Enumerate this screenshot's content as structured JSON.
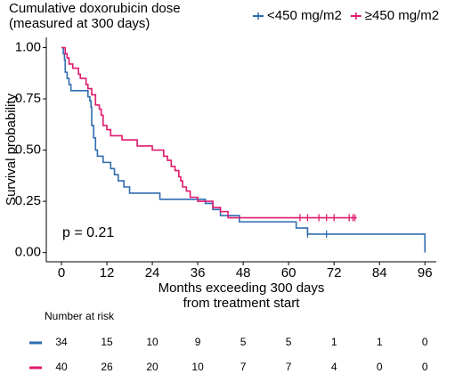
{
  "chart_data": {
    "type": "step",
    "legend_title": [
      "Cumulative doxorubicin dose",
      "(measured at 300 days)"
    ],
    "xlabel": [
      "Months exceeding 300 days",
      "from treatment start"
    ],
    "ylabel": "Survival probability",
    "annotation": "p = 0.21",
    "xlim": [
      -4,
      99
    ],
    "ylim": [
      -0.045,
      1.05
    ],
    "xticks": [
      0,
      12,
      24,
      36,
      48,
      60,
      72,
      84,
      96
    ],
    "yticks": [
      {
        "value": 0,
        "label": "0.00"
      },
      {
        "value": 0.25,
        "label": "0.25"
      },
      {
        "value": 0.5,
        "label": "0.50"
      },
      {
        "value": 0.75,
        "label": "0.75"
      },
      {
        "value": 1,
        "label": "1.00"
      }
    ],
    "series": [
      {
        "name": "<450 mg/m2",
        "color": "#2e6cb0",
        "x": [
          0,
          0.5,
          0.8,
          1,
          1.5,
          2,
          2.5,
          7,
          7.5,
          7.8,
          8,
          8.5,
          9,
          9.5,
          11,
          13,
          14,
          15,
          16.5,
          18,
          20,
          26,
          38,
          40,
          42,
          47,
          62,
          65,
          96,
          96
        ],
        "values": [
          1,
          0.97,
          0.94,
          0.88,
          0.85,
          0.82,
          0.79,
          0.76,
          0.74,
          0.71,
          0.62,
          0.56,
          0.5,
          0.47,
          0.44,
          0.41,
          0.38,
          0.35,
          0.32,
          0.29,
          0.29,
          0.26,
          0.24,
          0.21,
          0.18,
          0.15,
          0.12,
          0.09,
          0.09,
          0
        ],
        "censored": {
          "x": [
            65,
            70
          ],
          "y": [
            0.09,
            0.09
          ]
        }
      },
      {
        "name": "≥450 mg/m2",
        "color": "#e0196e",
        "x": [
          0,
          1,
          1.5,
          2,
          3,
          4.5,
          5,
          6.5,
          7,
          8,
          9,
          10,
          10.5,
          11,
          12,
          13,
          16,
          20,
          24,
          27,
          28,
          29,
          30,
          31,
          31.5,
          32,
          33,
          34,
          36,
          40,
          42,
          44,
          78
        ],
        "values": [
          1,
          0.97,
          0.95,
          0.92,
          0.9,
          0.87,
          0.85,
          0.82,
          0.8,
          0.77,
          0.72,
          0.7,
          0.67,
          0.62,
          0.6,
          0.57,
          0.55,
          0.52,
          0.5,
          0.47,
          0.45,
          0.42,
          0.4,
          0.37,
          0.35,
          0.32,
          0.3,
          0.27,
          0.25,
          0.22,
          0.2,
          0.17,
          0.17
        ],
        "censored": {
          "x": [
            63,
            65,
            68,
            70,
            72,
            76,
            77,
            77.5
          ],
          "y": [
            0.17,
            0.17,
            0.17,
            0.17,
            0.17,
            0.17,
            0.17,
            0.17
          ]
        }
      }
    ],
    "risk_table": {
      "title": "Number at risk",
      "rows": [
        [
          34,
          15,
          10,
          9,
          5,
          5,
          1,
          1,
          0
        ],
        [
          40,
          26,
          20,
          10,
          7,
          7,
          4,
          0,
          0
        ]
      ]
    }
  }
}
